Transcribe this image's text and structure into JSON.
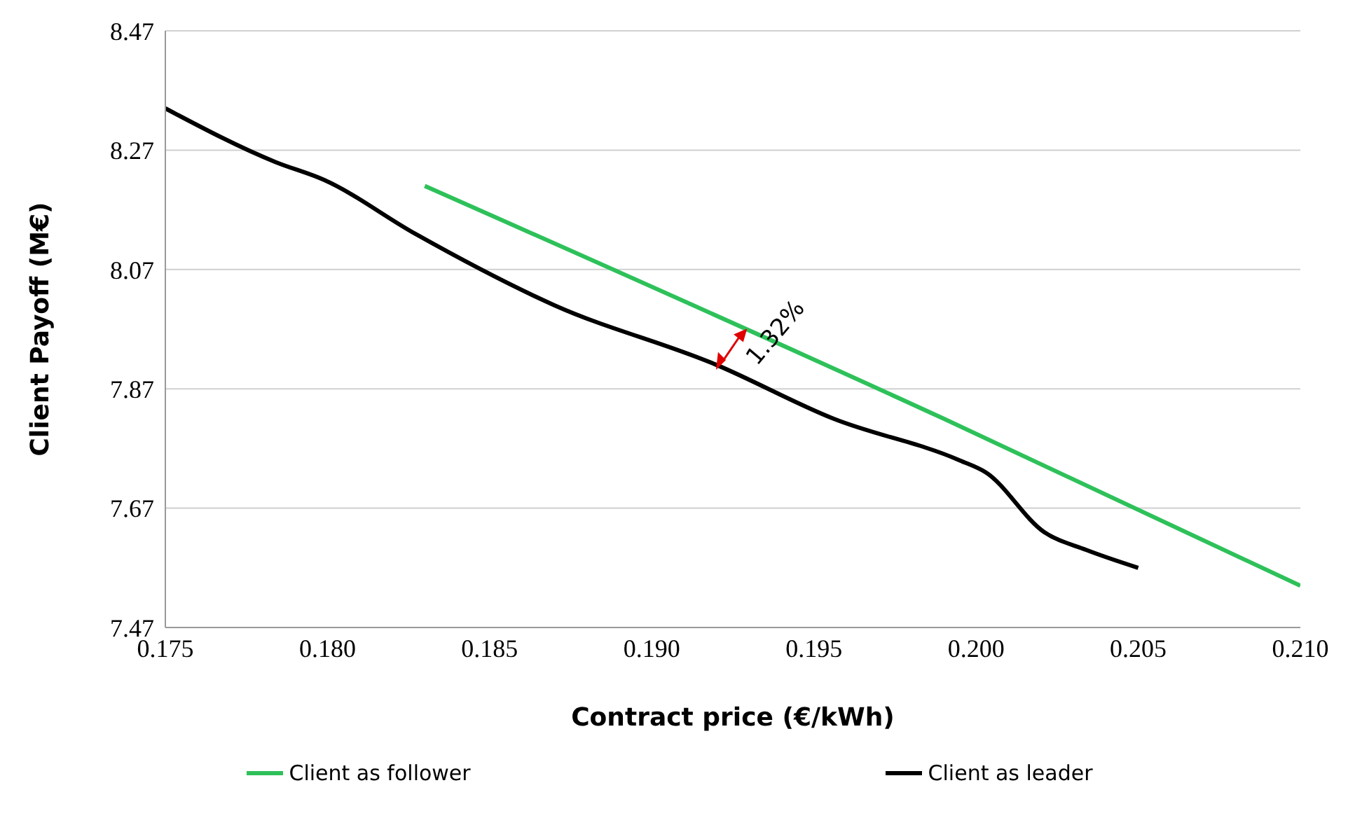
{
  "chart_data": {
    "type": "line",
    "xlabel": "Contract price (€/kWh)",
    "ylabel": "Client Payoff (M€)",
    "xlim": [
      0.175,
      0.21
    ],
    "xticks": [
      {
        "value": 0.175,
        "label": "0.175"
      },
      {
        "value": 0.18,
        "label": "0.180"
      },
      {
        "value": 0.185,
        "label": "0.185"
      },
      {
        "value": 0.19,
        "label": "0.190"
      },
      {
        "value": 0.195,
        "label": "0.195"
      },
      {
        "value": 0.2,
        "label": "0.200"
      },
      {
        "value": 0.205,
        "label": "0.205"
      },
      {
        "value": 0.21,
        "label": "0.210"
      }
    ],
    "ylim": [
      7.47,
      8.47
    ],
    "yticks": [
      7.47,
      7.67,
      7.87,
      8.07,
      8.27,
      8.47
    ],
    "grid": "y",
    "legend": "bottom",
    "marker": "none",
    "line_style": "solid",
    "annotations": [
      "1.32%"
    ],
    "series": [
      {
        "name": "Client as follower",
        "color": "#2ec15a",
        "x": [
          0.183,
          0.199,
          0.21
        ],
        "values": [
          8.21,
          7.82,
          7.54
        ]
      },
      {
        "name": "Client as leader",
        "color": "#000000",
        "x": [
          0.175,
          0.1784,
          0.1799,
          0.1827,
          0.187,
          0.192,
          0.1956,
          0.1995,
          0.2003,
          0.2021,
          0.2034,
          0.205
        ],
        "values": [
          8.34,
          8.25,
          8.22,
          8.13,
          8.01,
          7.91,
          7.82,
          7.75,
          7.73,
          7.63,
          7.6,
          7.57
        ]
      }
    ]
  }
}
